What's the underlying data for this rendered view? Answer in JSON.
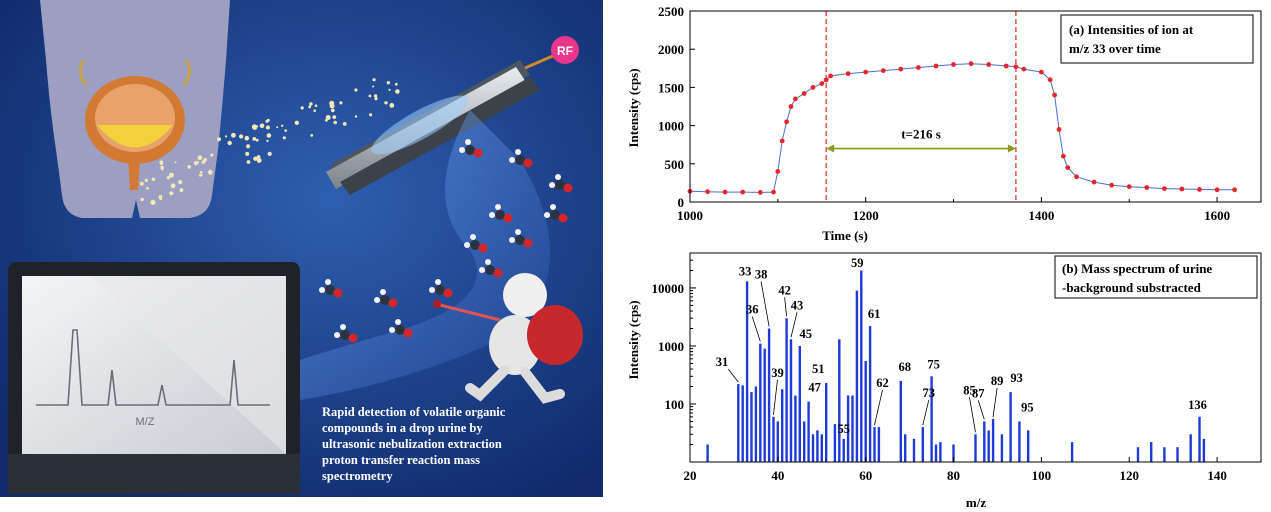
{
  "illustration": {
    "caption_lines": [
      "Rapid detection of volatile organic",
      "compounds in a drop urine by",
      "ultrasonic nebulization extraction",
      "proton transfer reaction mass",
      "spectrometry"
    ],
    "rf_label": "RF",
    "monitor_axis_label": "M/Z"
  },
  "chart_data": [
    {
      "type": "scatter",
      "title_lines": [
        "(a) Intensities of ion at",
        "m/z 33 over time"
      ],
      "xlabel": "Time (s)",
      "ylabel": "Intensity (cps)",
      "xlim": [
        1000,
        1650
      ],
      "ylim": [
        0,
        2500
      ],
      "xticks": [
        1000,
        1200,
        1400,
        1600
      ],
      "yticks": [
        0,
        500,
        1000,
        1500,
        2000,
        2500
      ],
      "legend": "top-right",
      "grid": false,
      "marker_color": "#e8262a",
      "line_color": "#4a6fd8",
      "dashed_lines_x": [
        1155,
        1371
      ],
      "arrow": {
        "x_start": 1155,
        "x_end": 1371,
        "y": 700,
        "label": "t=216 s",
        "color": "#8c9a1e"
      },
      "series": [
        {
          "x": [
            1000,
            1020,
            1040,
            1060,
            1080,
            1095,
            1100,
            1105,
            1110,
            1115,
            1120,
            1130,
            1140,
            1150,
            1155,
            1160,
            1180,
            1200,
            1220,
            1240,
            1260,
            1280,
            1300,
            1320,
            1340,
            1360,
            1371,
            1380,
            1400,
            1410,
            1415,
            1420,
            1425,
            1430,
            1440,
            1460,
            1480,
            1500,
            1520,
            1540,
            1560,
            1580,
            1600,
            1620
          ],
          "y": [
            140,
            135,
            130,
            130,
            125,
            130,
            400,
            800,
            1050,
            1250,
            1350,
            1420,
            1500,
            1550,
            1600,
            1650,
            1680,
            1700,
            1720,
            1740,
            1760,
            1780,
            1800,
            1810,
            1800,
            1780,
            1770,
            1740,
            1700,
            1600,
            1400,
            950,
            600,
            450,
            330,
            260,
            220,
            200,
            190,
            175,
            170,
            165,
            160,
            160
          ]
        }
      ]
    },
    {
      "type": "bar",
      "title_lines": [
        "(b) Mass spectrum of urine",
        "-background substracted"
      ],
      "xlabel": "m/z",
      "ylabel": "Intensity (cps)",
      "xlim": [
        20,
        150
      ],
      "ylim": [
        10,
        40000
      ],
      "yscale": "log",
      "xticks": [
        20,
        40,
        60,
        80,
        100,
        120,
        140
      ],
      "yticks": [
        100,
        1000,
        10000
      ],
      "legend": "top-right",
      "grid": false,
      "bar_color": "#1f3ad6",
      "x": [
        24,
        31,
        32,
        33,
        34,
        35,
        36,
        37,
        38,
        39,
        40,
        41,
        42,
        43,
        44,
        45,
        46,
        47,
        48,
        49,
        50,
        51,
        53,
        54,
        55,
        56,
        57,
        58,
        59,
        60,
        61,
        62,
        63,
        68,
        69,
        71,
        73,
        75,
        76,
        77,
        80,
        85,
        87,
        88,
        89,
        91,
        93,
        95,
        97,
        107,
        122,
        125,
        128,
        131,
        134,
        136,
        137
      ],
      "values": [
        20,
        220,
        210,
        13000,
        160,
        200,
        1100,
        900,
        2000,
        60,
        50,
        180,
        3000,
        1300,
        140,
        1000,
        50,
        110,
        30,
        35,
        30,
        230,
        45,
        1300,
        25,
        140,
        140,
        9000,
        20000,
        550,
        2200,
        40,
        40,
        250,
        30,
        25,
        40,
        300,
        20,
        22,
        20,
        30,
        50,
        35,
        55,
        30,
        160,
        50,
        35,
        22,
        18,
        22,
        18,
        18,
        30,
        60,
        25
      ],
      "peak_labels": [
        {
          "x": 31,
          "label": "31"
        },
        {
          "x": 33,
          "label": "33"
        },
        {
          "x": 36,
          "label": "36"
        },
        {
          "x": 38,
          "label": "38"
        },
        {
          "x": 39,
          "label": "39"
        },
        {
          "x": 42,
          "label": "42"
        },
        {
          "x": 43,
          "label": "43"
        },
        {
          "x": 45,
          "label": "45"
        },
        {
          "x": 47,
          "label": "47"
        },
        {
          "x": 51,
          "label": "51"
        },
        {
          "x": 55,
          "label": "55"
        },
        {
          "x": 59,
          "label": "59"
        },
        {
          "x": 61,
          "label": "61"
        },
        {
          "x": 62,
          "label": "62"
        },
        {
          "x": 68,
          "label": "68"
        },
        {
          "x": 73,
          "label": "73"
        },
        {
          "x": 75,
          "label": "75"
        },
        {
          "x": 85,
          "label": "85"
        },
        {
          "x": 87,
          "label": "87"
        },
        {
          "x": 89,
          "label": "89"
        },
        {
          "x": 93,
          "label": "93"
        },
        {
          "x": 95,
          "label": "95"
        },
        {
          "x": 136,
          "label": "136"
        }
      ]
    }
  ]
}
